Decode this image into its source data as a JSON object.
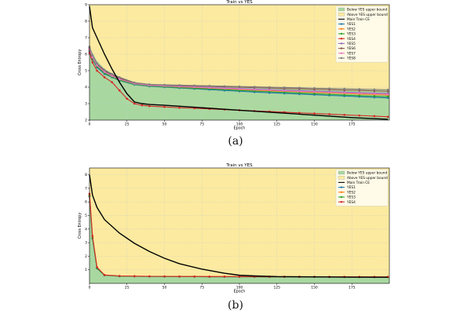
{
  "chart_data": [
    {
      "id": "a",
      "type": "line",
      "title": "Train vs YES",
      "xlabel": "Epoch",
      "ylabel": "Cross Entropy",
      "xlim": [
        0,
        200
      ],
      "ylim": [
        2,
        9
      ],
      "xticks": [
        0,
        25,
        50,
        75,
        100,
        125,
        150,
        175
      ],
      "yticks": [
        2,
        3,
        4,
        5,
        6,
        7,
        8,
        9
      ],
      "grid": true,
      "legend_position": "top-right",
      "legend": {
        "below": "Below YES upper bound",
        "above": "Above YES upper bound",
        "main": "Main Train CE"
      },
      "colors": {
        "below": "#a8d8a0",
        "above": "#fbeaa0",
        "main": "#000000"
      },
      "main_series": {
        "x": [
          0,
          2,
          5,
          10,
          15,
          20,
          25,
          30,
          35,
          40,
          50,
          75,
          100,
          125,
          150,
          175,
          199
        ],
        "y": [
          8.9,
          7.6,
          7.0,
          6.0,
          5.1,
          4.3,
          3.6,
          3.1,
          3.0,
          2.95,
          2.9,
          2.75,
          2.6,
          2.45,
          2.3,
          2.15,
          2.05
        ]
      },
      "upper_bound": {
        "x": [
          0,
          5,
          10,
          20,
          30,
          40,
          50,
          75,
          100,
          125,
          150,
          175,
          199
        ],
        "y": [
          6.4,
          5.6,
          5.1,
          4.6,
          4.25,
          4.15,
          4.1,
          4.05,
          4.0,
          3.95,
          3.9,
          3.85,
          3.8
        ]
      },
      "series": [
        {
          "name": "YES1",
          "color": "#1f77b4",
          "marker": "circle",
          "x": [
            0,
            2,
            5,
            10,
            15,
            20,
            30,
            40,
            50,
            60,
            70,
            80,
            90,
            100,
            110,
            120,
            130,
            140,
            150,
            160,
            170,
            180,
            190,
            199
          ],
          "y": [
            6.2,
            5.7,
            5.2,
            4.8,
            4.6,
            4.4,
            4.15,
            4.05,
            4.0,
            3.95,
            3.9,
            3.85,
            3.8,
            3.75,
            3.7,
            3.66,
            3.62,
            3.58,
            3.54,
            3.5,
            3.46,
            3.42,
            3.38,
            3.35
          ]
        },
        {
          "name": "YES2",
          "color": "#ff7f0e",
          "marker": "circle",
          "x": [
            0,
            2,
            5,
            10,
            15,
            20,
            30,
            40,
            50,
            60,
            70,
            80,
            90,
            100,
            110,
            120,
            130,
            140,
            150,
            160,
            170,
            180,
            190,
            199
          ],
          "y": [
            6.3,
            5.8,
            5.3,
            4.9,
            4.65,
            4.45,
            4.2,
            4.1,
            4.05,
            4.0,
            3.97,
            3.93,
            3.9,
            3.86,
            3.82,
            3.78,
            3.75,
            3.72,
            3.68,
            3.65,
            3.62,
            3.58,
            3.55,
            3.52
          ]
        },
        {
          "name": "YES3",
          "color": "#2ca02c",
          "marker": "circle",
          "x": [
            0,
            2,
            5,
            10,
            15,
            20,
            30,
            40,
            50,
            60,
            70,
            80,
            90,
            100,
            110,
            120,
            130,
            140,
            150,
            160,
            170,
            180,
            190,
            199
          ],
          "y": [
            6.25,
            5.75,
            5.25,
            4.85,
            4.62,
            4.42,
            4.17,
            4.07,
            4.02,
            3.97,
            3.93,
            3.89,
            3.85,
            3.8,
            3.76,
            3.72,
            3.68,
            3.64,
            3.6,
            3.56,
            3.52,
            3.48,
            3.45,
            3.42
          ]
        },
        {
          "name": "YES4",
          "color": "#d62728",
          "marker": "circle",
          "x": [
            0,
            2,
            5,
            10,
            15,
            20,
            25,
            30,
            35,
            40,
            50,
            60,
            70,
            80,
            90,
            100,
            110,
            120,
            130,
            140,
            150,
            160,
            170,
            180,
            190,
            199
          ],
          "y": [
            6.1,
            5.5,
            5.0,
            4.6,
            4.3,
            3.8,
            3.3,
            3.0,
            2.9,
            2.85,
            2.8,
            2.75,
            2.72,
            2.68,
            2.64,
            2.6,
            2.56,
            2.52,
            2.48,
            2.44,
            2.4,
            2.36,
            2.32,
            2.28,
            2.24,
            2.2
          ]
        },
        {
          "name": "YES5",
          "color": "#9467bd",
          "marker": "circle",
          "x": [
            0,
            2,
            5,
            10,
            15,
            20,
            30,
            40,
            50,
            60,
            70,
            80,
            90,
            100,
            110,
            120,
            130,
            140,
            150,
            160,
            170,
            180,
            190,
            199
          ],
          "y": [
            6.35,
            5.85,
            5.35,
            4.95,
            4.7,
            4.5,
            4.22,
            4.12,
            4.08,
            4.05,
            4.02,
            3.98,
            3.95,
            3.92,
            3.88,
            3.85,
            3.82,
            3.79,
            3.76,
            3.73,
            3.7,
            3.67,
            3.64,
            3.62
          ]
        },
        {
          "name": "YES6",
          "color": "#8c564b",
          "marker": "circle",
          "x": [
            0,
            2,
            5,
            10,
            15,
            20,
            30,
            40,
            50,
            60,
            70,
            80,
            90,
            100,
            110,
            120,
            130,
            140,
            150,
            160,
            170,
            180,
            190,
            199
          ],
          "y": [
            6.4,
            5.9,
            5.4,
            5.0,
            4.75,
            4.55,
            4.25,
            4.15,
            4.12,
            4.1,
            4.07,
            4.05,
            4.02,
            4.0,
            3.97,
            3.95,
            3.92,
            3.9,
            3.87,
            3.85,
            3.82,
            3.8,
            3.77,
            3.75
          ]
        },
        {
          "name": "YES7",
          "color": "#e377c2",
          "marker": "circle",
          "x": [
            0,
            2,
            5,
            10,
            15,
            20,
            30,
            40,
            50,
            60,
            70,
            80,
            90,
            100,
            110,
            120,
            130,
            140,
            150,
            160,
            170,
            180,
            190,
            199
          ],
          "y": [
            6.3,
            5.82,
            5.32,
            4.92,
            4.68,
            4.48,
            4.21,
            4.11,
            4.07,
            4.03,
            4.0,
            3.96,
            3.92,
            3.89,
            3.85,
            3.82,
            3.78,
            3.75,
            3.72,
            3.69,
            3.66,
            3.63,
            3.6,
            3.57
          ]
        },
        {
          "name": "YES8",
          "color": "#7f7f7f",
          "marker": "circle",
          "x": [
            0,
            2,
            5,
            10,
            15,
            20,
            30,
            40,
            50,
            60,
            70,
            80,
            90,
            100,
            110,
            120,
            130,
            140,
            150,
            160,
            170,
            180,
            190,
            199
          ],
          "y": [
            6.45,
            5.95,
            5.45,
            5.05,
            4.8,
            4.6,
            4.28,
            4.17,
            4.14,
            4.12,
            4.1,
            4.08,
            4.06,
            4.04,
            4.02,
            4.0,
            3.98,
            3.96,
            3.94,
            3.92,
            3.9,
            3.88,
            3.86,
            3.84
          ]
        }
      ]
    },
    {
      "id": "b",
      "type": "line",
      "title": "Train vs YES",
      "xlabel": "Epoch",
      "ylabel": "Cross Entropy",
      "xlim": [
        0,
        200
      ],
      "ylim": [
        0,
        8.5
      ],
      "xticks": [
        0,
        25,
        50,
        75,
        100,
        125,
        150,
        175
      ],
      "yticks": [
        1,
        2,
        3,
        4,
        5,
        6,
        7,
        8
      ],
      "grid": true,
      "legend_position": "top-right",
      "legend": {
        "below": "Below YES upper bound",
        "above": "Above YES upper bound",
        "main": "Main Train CE"
      },
      "colors": {
        "below": "#a8d8a0",
        "above": "#fbeaa0",
        "main": "#000000"
      },
      "main_series": {
        "x": [
          0,
          2,
          5,
          10,
          20,
          30,
          40,
          50,
          60,
          75,
          90,
          100,
          110,
          125,
          150,
          175,
          199
        ],
        "y": [
          8.0,
          6.5,
          5.6,
          4.7,
          3.7,
          2.95,
          2.35,
          1.85,
          1.45,
          1.05,
          0.75,
          0.6,
          0.55,
          0.5,
          0.48,
          0.46,
          0.45
        ]
      },
      "upper_bound": {
        "x": [
          0,
          2,
          5,
          10,
          20,
          50,
          100,
          150,
          199
        ],
        "y": [
          6.6,
          3.5,
          1.2,
          0.62,
          0.55,
          0.52,
          0.5,
          0.49,
          0.48
        ]
      },
      "series": [
        {
          "name": "YES1",
          "color": "#1f77b4",
          "marker": "circle",
          "x": [
            0,
            2,
            5,
            10,
            20,
            30,
            40,
            50,
            60,
            70,
            80,
            90,
            100,
            110,
            120,
            130,
            140,
            150,
            160,
            170,
            180,
            190,
            199
          ],
          "y": [
            6.4,
            3.3,
            1.1,
            0.6,
            0.53,
            0.52,
            0.51,
            0.5,
            0.5,
            0.5,
            0.49,
            0.49,
            0.49,
            0.48,
            0.48,
            0.48,
            0.48,
            0.47,
            0.47,
            0.47,
            0.47,
            0.46,
            0.46
          ]
        },
        {
          "name": "YES2",
          "color": "#ff7f0e",
          "marker": "circle",
          "x": [
            0,
            2,
            5,
            10,
            20,
            30,
            40,
            50,
            60,
            70,
            80,
            90,
            100,
            110,
            120,
            130,
            140,
            150,
            160,
            170,
            180,
            190,
            199
          ],
          "y": [
            6.5,
            3.4,
            1.15,
            0.61,
            0.54,
            0.53,
            0.52,
            0.51,
            0.51,
            0.5,
            0.5,
            0.5,
            0.49,
            0.49,
            0.49,
            0.49,
            0.48,
            0.48,
            0.48,
            0.48,
            0.47,
            0.47,
            0.47
          ]
        },
        {
          "name": "YES3",
          "color": "#2ca02c",
          "marker": "circle",
          "x": [
            0,
            2,
            5,
            10,
            20,
            30,
            40,
            50,
            60,
            70,
            80,
            90,
            100,
            110,
            120,
            130,
            140,
            150,
            160,
            170,
            180,
            190,
            199
          ],
          "y": [
            6.45,
            3.35,
            1.12,
            0.6,
            0.53,
            0.52,
            0.51,
            0.5,
            0.5,
            0.5,
            0.49,
            0.49,
            0.49,
            0.49,
            0.48,
            0.48,
            0.48,
            0.48,
            0.47,
            0.47,
            0.47,
            0.47,
            0.46
          ]
        },
        {
          "name": "YES4",
          "color": "#d62728",
          "marker": "circle",
          "x": [
            0,
            2,
            5,
            10,
            20,
            30,
            40,
            50,
            60,
            70,
            80,
            90,
            100,
            110,
            120,
            130,
            140,
            150,
            160,
            170,
            180,
            190,
            199
          ],
          "y": [
            6.6,
            3.5,
            1.2,
            0.62,
            0.55,
            0.53,
            0.52,
            0.52,
            0.51,
            0.51,
            0.5,
            0.5,
            0.5,
            0.5,
            0.49,
            0.49,
            0.49,
            0.49,
            0.48,
            0.48,
            0.48,
            0.48,
            0.48
          ]
        }
      ]
    }
  ],
  "captions": {
    "a": "(a)",
    "b": "(b)"
  }
}
